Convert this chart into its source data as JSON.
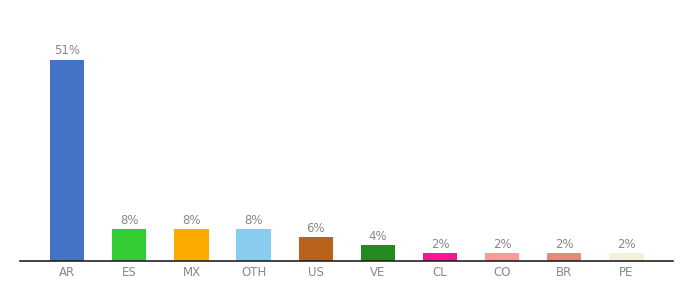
{
  "categories": [
    "AR",
    "ES",
    "MX",
    "OTH",
    "US",
    "VE",
    "CL",
    "CO",
    "BR",
    "PE"
  ],
  "values": [
    51,
    8,
    8,
    8,
    6,
    4,
    2,
    2,
    2,
    2
  ],
  "bar_colors": [
    "#4472C4",
    "#33CC33",
    "#FFAA00",
    "#88CCEE",
    "#B8621B",
    "#228B22",
    "#FF1493",
    "#FF9999",
    "#E8897A",
    "#F5F0DC"
  ],
  "label_fontsize": 8.5,
  "tick_fontsize": 8.5,
  "label_color": "#888888",
  "tick_color": "#888888",
  "background_color": "#ffffff",
  "ylim": [
    0,
    60
  ],
  "bar_width": 0.55,
  "spine_color": "#222222",
  "spine_linewidth": 1.2
}
